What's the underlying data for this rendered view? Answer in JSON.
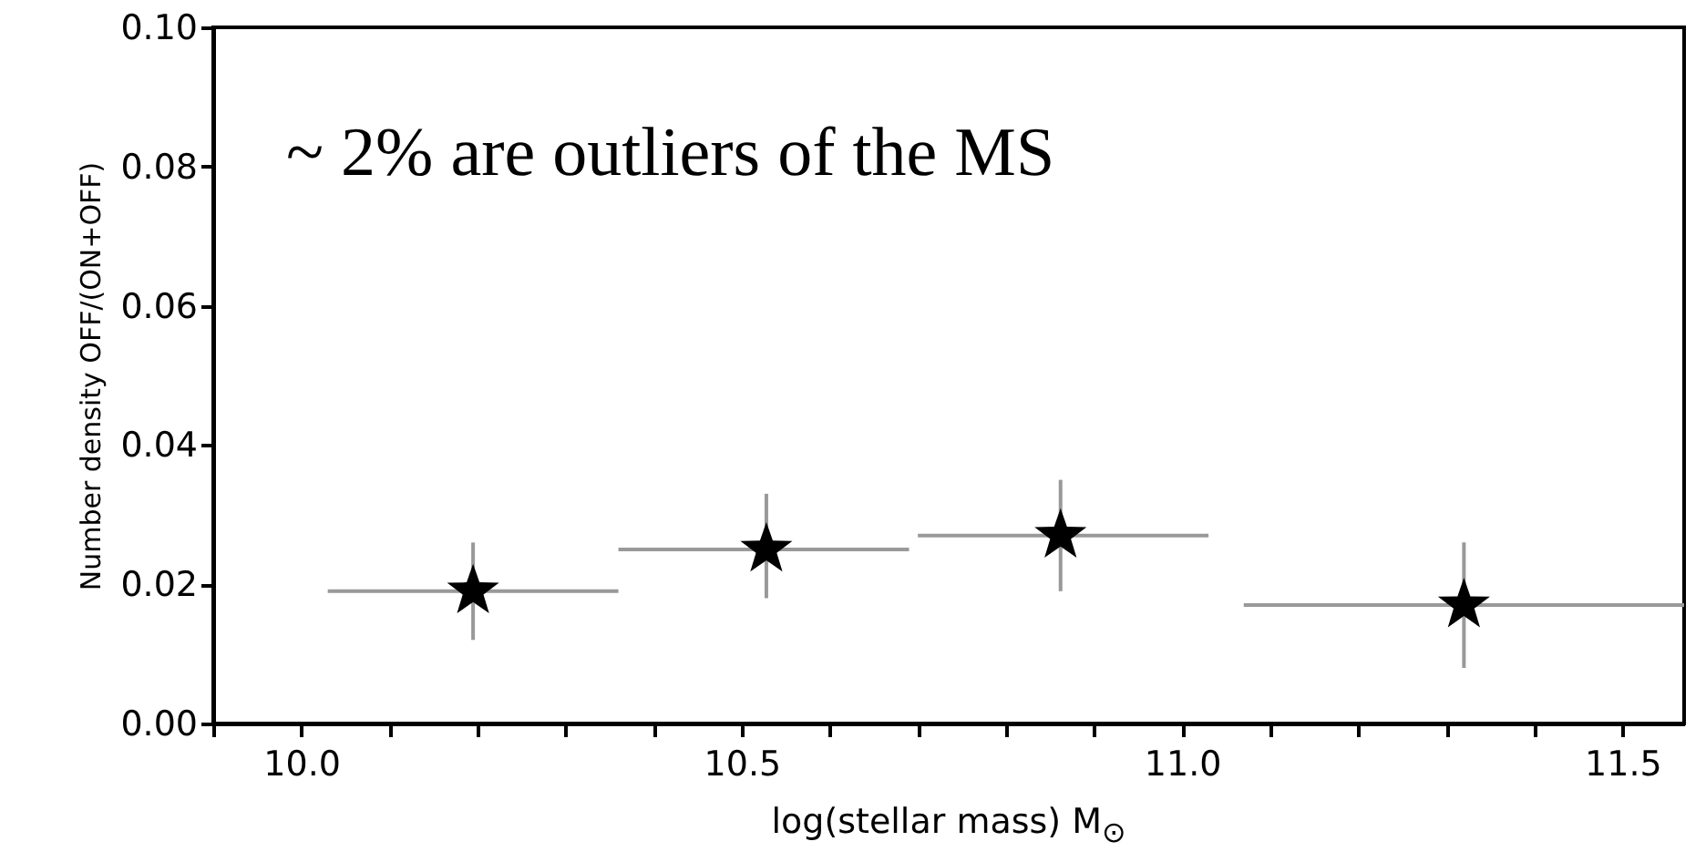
{
  "chart_data": {
    "type": "scatter",
    "xlabel": "log(stellar mass) M$_{⊙}$",
    "ylabel": "Number density OFF/(ON+OFF)",
    "annotations": [
      "~ 2% are outliers of the MS"
    ],
    "x": [
      10.195,
      10.528,
      10.862,
      11.32
    ],
    "series": [
      {
        "color": "#000000",
        "values": [
          0.019,
          0.025,
          0.027,
          0.017
        ],
        "errors": [
          [
            0.012,
            0.026
          ],
          [
            0.018,
            0.033
          ],
          [
            0.019,
            0.035
          ],
          [
            0.008,
            0.026
          ]
        ],
        "xerrors": [
          [
            10.03,
            10.36
          ],
          [
            10.36,
            10.69
          ],
          [
            10.7,
            11.03
          ],
          [
            11.07,
            11.57
          ]
        ]
      }
    ],
    "marker": "star",
    "xlim": [
      9.9,
      11.57
    ],
    "xticks": [
      {
        "value": 9.9,
        "label": null
      },
      {
        "value": 10,
        "label": "10.0"
      },
      {
        "value": 10.1,
        "label": null
      },
      {
        "value": 10.2,
        "label": null
      },
      {
        "value": 10.3,
        "label": null
      },
      {
        "value": 10.4,
        "label": null
      },
      10.5,
      {
        "value": 10.6,
        "label": null
      },
      {
        "value": 10.7,
        "label": null
      },
      {
        "value": 10.8,
        "label": null
      },
      {
        "value": 10.9,
        "label": null
      },
      {
        "value": 11,
        "label": "11.0"
      },
      {
        "value": 11.1,
        "label": null
      },
      {
        "value": 11.2,
        "label": null
      },
      {
        "value": 11.3,
        "label": null
      },
      {
        "value": 11.4,
        "label": null
      },
      11.5
    ],
    "ylim": [
      0,
      0.1
    ],
    "yticks": [
      {
        "value": 0,
        "label": "0.00"
      },
      {
        "value": 0.02,
        "label": "0.02"
      },
      {
        "value": 0.04,
        "label": "0.04"
      },
      {
        "value": 0.06,
        "label": "0.06"
      },
      {
        "value": 0.08,
        "label": "0.08"
      },
      {
        "value": 0.1,
        "label": "0.10"
      }
    ]
  }
}
